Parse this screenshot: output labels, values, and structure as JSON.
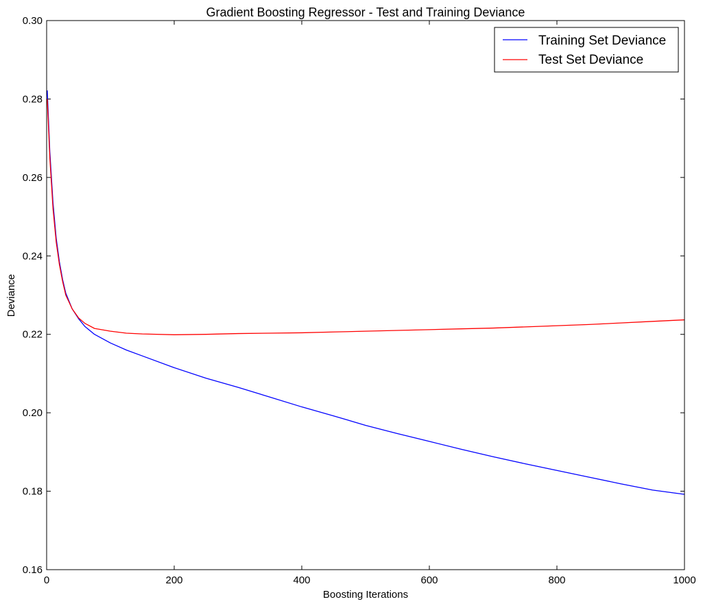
{
  "chart_data": {
    "type": "line",
    "title": "Gradient Boosting Regressor - Test and Training Deviance",
    "xlabel": "Boosting Iterations",
    "ylabel": "Deviance",
    "xlim": [
      0,
      1000
    ],
    "ylim": [
      0.16,
      0.3
    ],
    "xticks": [
      "0",
      "200",
      "400",
      "600",
      "800",
      "1000"
    ],
    "yticks": [
      "0.16",
      "0.18",
      "0.20",
      "0.22",
      "0.24",
      "0.26",
      "0.28",
      "0.30"
    ],
    "grid": false,
    "legend_position": "top-right",
    "series": [
      {
        "name": "Training Set Deviance",
        "color": "#0000ff",
        "x": [
          1,
          5,
          10,
          15,
          20,
          25,
          30,
          40,
          50,
          60,
          75,
          100,
          125,
          150,
          200,
          250,
          300,
          350,
          400,
          450,
          500,
          550,
          600,
          650,
          700,
          750,
          800,
          850,
          900,
          950,
          1000
        ],
        "y": [
          0.2822,
          0.2665,
          0.2535,
          0.2445,
          0.2385,
          0.234,
          0.2305,
          0.2265,
          0.224,
          0.222,
          0.22,
          0.2178,
          0.216,
          0.2145,
          0.2115,
          0.2088,
          0.2065,
          0.204,
          0.2015,
          0.1992,
          0.1968,
          0.1947,
          0.1927,
          0.1907,
          0.1888,
          0.187,
          0.1853,
          0.1836,
          0.1819,
          0.1803,
          0.1792
        ]
      },
      {
        "name": "Test Set Deviance",
        "color": "#ff0000",
        "x": [
          1,
          5,
          10,
          15,
          20,
          25,
          30,
          40,
          50,
          60,
          75,
          100,
          125,
          150,
          200,
          250,
          300,
          350,
          400,
          450,
          500,
          550,
          600,
          650,
          700,
          750,
          800,
          850,
          900,
          950,
          1000
        ],
        "y": [
          0.28,
          0.265,
          0.252,
          0.2435,
          0.2378,
          0.2335,
          0.23,
          0.2265,
          0.2242,
          0.2228,
          0.2215,
          0.2208,
          0.2203,
          0.2201,
          0.2199,
          0.22,
          0.2202,
          0.2203,
          0.2204,
          0.2206,
          0.2208,
          0.221,
          0.2212,
          0.2214,
          0.2216,
          0.2219,
          0.2222,
          0.2225,
          0.2229,
          0.2233,
          0.2237
        ]
      }
    ]
  }
}
